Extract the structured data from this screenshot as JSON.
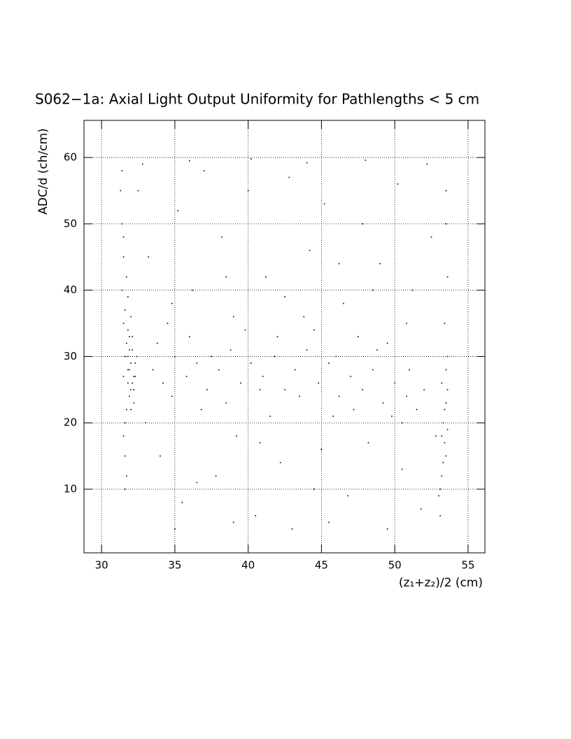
{
  "chart_data": {
    "type": "scatter",
    "title": "S062−1a: Axial Light Output Uniformity for Pathlengths < 5 cm",
    "xlabel": "(z₁+z₂)/2 (cm)",
    "ylabel": "ADC/d (ch/cm)",
    "xlim": [
      28.8,
      56.15
    ],
    "ylim": [
      0.4,
      65.6
    ],
    "xticks": [
      30,
      35,
      40,
      45,
      50,
      55
    ],
    "yticks": [
      10,
      20,
      30,
      40,
      50,
      60
    ],
    "grid": true,
    "color": "#000000",
    "x": [
      31.5,
      31.8,
      32.0,
      31.6,
      31.9,
      32.2,
      31.4,
      31.7,
      32.1,
      31.5,
      31.8,
      32.3,
      31.6,
      31.9,
      32.0,
      31.4,
      31.7,
      32.2,
      31.5,
      31.8,
      32.4,
      31.6,
      31.9,
      32.1,
      31.3,
      31.7,
      32.0,
      31.5,
      31.8,
      32.2,
      31.4,
      31.6,
      31.9,
      32.3,
      31.7,
      32.0,
      31.5,
      31.8,
      32.1,
      31.6,
      33.5,
      34.2,
      35.0,
      35.8,
      36.5,
      37.2,
      38.0,
      38.8,
      39.5,
      40.2,
      41.0,
      41.8,
      42.5,
      43.2,
      44.0,
      44.8,
      45.5,
      46.2,
      47.0,
      47.8,
      48.5,
      49.2,
      50.0,
      50.8,
      51.5,
      33.8,
      34.8,
      36.0,
      37.5,
      38.5,
      39.8,
      40.8,
      42.0,
      43.5,
      44.5,
      46.0,
      47.2,
      48.8,
      49.8,
      51.0,
      34.5,
      36.8,
      39.0,
      41.5,
      43.8,
      45.8,
      47.5,
      49.5,
      50.5,
      52.0,
      32.5,
      33.2,
      34.0,
      35.2,
      35.5,
      36.2,
      37.0,
      37.8,
      38.2,
      39.2,
      40.0,
      40.5,
      41.2,
      42.2,
      42.8,
      43.0,
      44.2,
      45.0,
      45.2,
      46.5,
      46.8,
      47.8,
      48.2,
      49.0,
      50.2,
      50.5,
      51.2,
      51.8,
      52.5,
      52.8,
      33.0,
      34.8,
      36.5,
      38.5,
      40.8,
      42.5,
      44.5,
      46.2,
      48.5,
      50.8,
      32.8,
      36.0,
      40.2,
      44.0,
      48.0,
      52.2,
      35.0,
      39.0,
      45.5,
      49.5,
      53.2,
      53.4,
      53.5,
      53.1,
      53.6,
      53.3,
      53.5,
      53.2,
      53.4,
      53.6,
      53.0,
      53.5,
      53.3,
      53.6,
      53.5,
      53.4,
      53.2,
      53.6,
      53.1,
      53.5
    ],
    "values": [
      35,
      28,
      25,
      30,
      33,
      27,
      40,
      22,
      31,
      45,
      26,
      29,
      37,
      24,
      29,
      50,
      32,
      23,
      27,
      34,
      30,
      20,
      28,
      26,
      55,
      42,
      36,
      18,
      30,
      25,
      58,
      15,
      31,
      27,
      12,
      22,
      48,
      39,
      33,
      10,
      28,
      26,
      30,
      27,
      29,
      25,
      28,
      31,
      26,
      29,
      27,
      30,
      25,
      28,
      31,
      26,
      29,
      24,
      27,
      25,
      28,
      23,
      26,
      24,
      22,
      32,
      24,
      33,
      30,
      23,
      34,
      25,
      33,
      24,
      34,
      30,
      22,
      31,
      21,
      28,
      35,
      22,
      36,
      21,
      36,
      21,
      33,
      32,
      20,
      25,
      55,
      45,
      15,
      52,
      8,
      40,
      58,
      12,
      48,
      18,
      55,
      6,
      42,
      14,
      57,
      4,
      46,
      16,
      53,
      38,
      9,
      50,
      17,
      44,
      56,
      13,
      40,
      7,
      48,
      18,
      20,
      38,
      11,
      42,
      17,
      39,
      10,
      44,
      40,
      35,
      59,
      59.5,
      59.8,
      59.2,
      59.6,
      59,
      4,
      5,
      5,
      4,
      18,
      22,
      15,
      10,
      25,
      20,
      28,
      12,
      17,
      30,
      9,
      23,
      14,
      42,
      55,
      35,
      26,
      19,
      6,
      50
    ]
  }
}
